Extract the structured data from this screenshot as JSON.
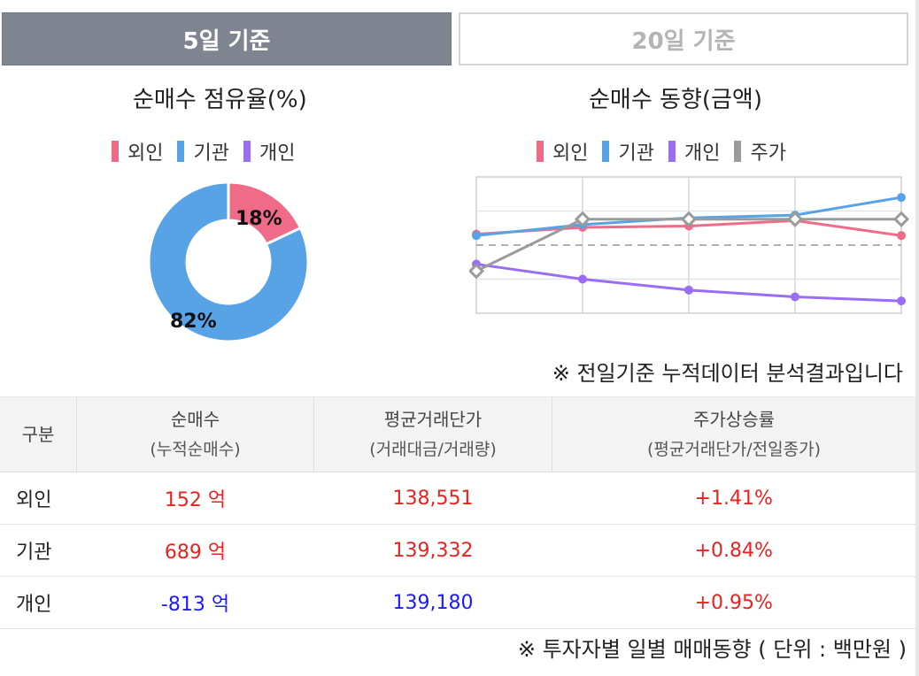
{
  "tabs": [
    {
      "label": "5일 기준",
      "active": true
    },
    {
      "label": "20일 기준",
      "active": false
    }
  ],
  "donut": {
    "title": "순매수 점유율(%)",
    "legend": [
      {
        "label": "외인",
        "color": "#ef6b87"
      },
      {
        "label": "기관",
        "color": "#58a3e6"
      },
      {
        "label": "개인",
        "color": "#9b6cf6"
      }
    ],
    "labels": {
      "small": "18%",
      "large": "82%"
    }
  },
  "trend": {
    "title": "순매수 동향(금액)",
    "legend": [
      {
        "label": "외인",
        "color": "#ef6b87"
      },
      {
        "label": "기관",
        "color": "#58a3e6"
      },
      {
        "label": "개인",
        "color": "#9b6cf6"
      },
      {
        "label": "주가",
        "color": "#9b9b9b"
      }
    ]
  },
  "notes": {
    "analysis": "※ 전일기준 누적데이터 분석결과입니다",
    "daily": "※ 투자자별 일별 매매동향 ( 단위 : 백만원 )"
  },
  "table": {
    "headers": [
      {
        "main": "구분",
        "sub": ""
      },
      {
        "main": "순매수",
        "sub": "(누적순매수)"
      },
      {
        "main": "평균거래단가",
        "sub": "(거래대금/거래량)"
      },
      {
        "main": "주가상승률",
        "sub": "(평균거래단가/전일종가)"
      }
    ],
    "rows": [
      {
        "name": "외인",
        "net": "152 억",
        "avg": "138,551",
        "rate": "+1.41%",
        "net_color": "red",
        "avg_color": "red"
      },
      {
        "name": "기관",
        "net": "689 억",
        "avg": "139,332",
        "rate": "+0.84%",
        "net_color": "red",
        "avg_color": "red"
      },
      {
        "name": "개인",
        "net": "-813 억",
        "avg": "139,180",
        "rate": "+0.95%",
        "net_color": "blue",
        "avg_color": "blue"
      }
    ]
  },
  "chart_data": [
    {
      "type": "pie",
      "title": "순매수 점유율(%)",
      "categories": [
        "외인",
        "기관"
      ],
      "values": [
        18,
        82
      ],
      "colors": [
        "#ef6b87",
        "#58a3e6"
      ],
      "donut": true
    },
    {
      "type": "line",
      "title": "순매수 동향(금액)",
      "x": [
        1,
        2,
        3,
        4,
        5
      ],
      "ylim": [
        0,
        100
      ],
      "grid": true,
      "series": [
        {
          "name": "외인",
          "color": "#ef6b87",
          "values": [
            58,
            63,
            64,
            68,
            57
          ]
        },
        {
          "name": "기관",
          "color": "#58a3e6",
          "values": [
            57,
            65,
            70,
            72,
            85
          ]
        },
        {
          "name": "개인",
          "color": "#9b6cf6",
          "values": [
            36,
            25,
            17,
            12,
            9
          ]
        },
        {
          "name": "주가",
          "color": "#9b9b9b",
          "values": [
            31,
            69,
            69,
            69,
            69
          ],
          "marker": "diamond"
        }
      ],
      "reference_line": 50
    }
  ]
}
